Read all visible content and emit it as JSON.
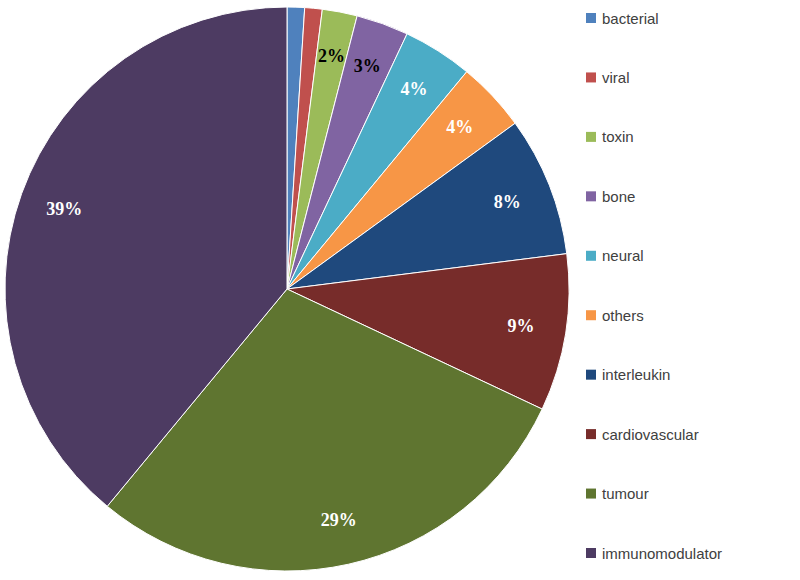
{
  "chart_data": {
    "type": "pie",
    "categories": [
      "bacterial",
      "viral",
      "toxin",
      "bone",
      "neural",
      "others",
      "interleukin",
      "cardiovascular",
      "tumour",
      "immunomodulator"
    ],
    "values": [
      1,
      1,
      2,
      3,
      4,
      4,
      8,
      9,
      29,
      39
    ],
    "value_labels": [
      null,
      null,
      "2%",
      "3%",
      "4%",
      "4%",
      "8%",
      "9%",
      "29%",
      "39%"
    ],
    "colors": [
      "#4f81bd",
      "#c0504d",
      "#9bbb59",
      "#8064a2",
      "#4bacc6",
      "#f79646",
      "#1f497d",
      "#772c2a",
      "#5f7530",
      "#4d3b62"
    ],
    "data_labels": true,
    "legend": "right"
  }
}
